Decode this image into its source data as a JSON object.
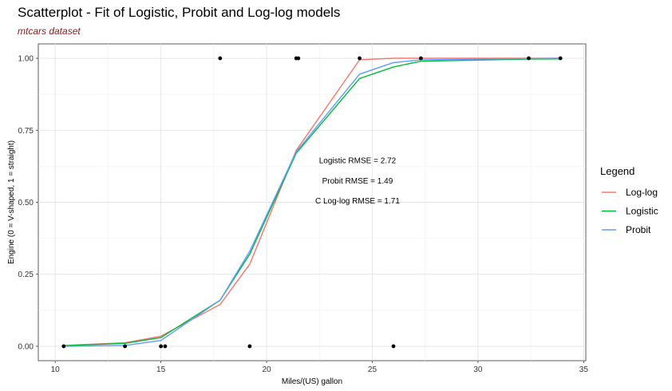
{
  "chart_data": {
    "type": "scatter",
    "title": "Scatterplot - Fit of Logistic, Probit and Log-log models",
    "subtitle": "mtcars dataset",
    "xlabel": "Miles/(US) gallon",
    "ylabel": "Engine (0 = V-shaped, 1 = straight)",
    "xlim": [
      9.2,
      35.1
    ],
    "ylim": [
      -0.05,
      1.05
    ],
    "x_ticks": [
      10,
      15,
      20,
      25,
      30,
      35
    ],
    "y_ticks": [
      0.0,
      0.25,
      0.5,
      0.75,
      1.0
    ],
    "x_tick_labels": [
      "10",
      "15",
      "20",
      "25",
      "30",
      "35"
    ],
    "y_tick_labels": [
      "0.00",
      "0.25",
      "0.50",
      "0.75",
      "1.00"
    ],
    "grid": true,
    "legend_position": "right",
    "legend_title": "Legend",
    "points": {
      "x": [
        10.4,
        13.3,
        15.0,
        15.2,
        19.2,
        26.0,
        17.8,
        21.4,
        21.5,
        24.4,
        27.3,
        32.4,
        33.9
      ],
      "y": [
        0,
        0,
        0,
        0,
        0,
        0,
        1,
        1,
        1,
        1,
        1,
        1,
        1
      ]
    },
    "curve_x": [
      10.4,
      13.3,
      15.0,
      17.8,
      19.2,
      21.4,
      24.4,
      26.0,
      27.3,
      32.4,
      33.9
    ],
    "series": [
      {
        "name": "Log-log",
        "color": "#F8766D",
        "values": [
          0.003,
          0.012,
          0.035,
          0.145,
          0.285,
          0.68,
          0.995,
          1.0,
          1.0,
          1.0,
          1.0
        ]
      },
      {
        "name": "Logistic",
        "color": "#00BA38",
        "values": [
          0.002,
          0.01,
          0.03,
          0.16,
          0.32,
          0.67,
          0.93,
          0.97,
          0.99,
          0.997,
          0.998
        ]
      },
      {
        "name": "Probit",
        "color": "#619CFF",
        "values": [
          0.0,
          0.003,
          0.02,
          0.16,
          0.33,
          0.675,
          0.945,
          0.985,
          0.995,
          0.999,
          1.0
        ]
      }
    ],
    "annotations": [
      {
        "text": "Logistic RMSE =  2.72",
        "x": 24.3,
        "y": 0.645
      },
      {
        "text": "Probit RMSE =  1.49",
        "x": 24.3,
        "y": 0.575
      },
      {
        "text": "C Log-log RMSE =  1.71",
        "x": 24.3,
        "y": 0.505
      }
    ]
  }
}
